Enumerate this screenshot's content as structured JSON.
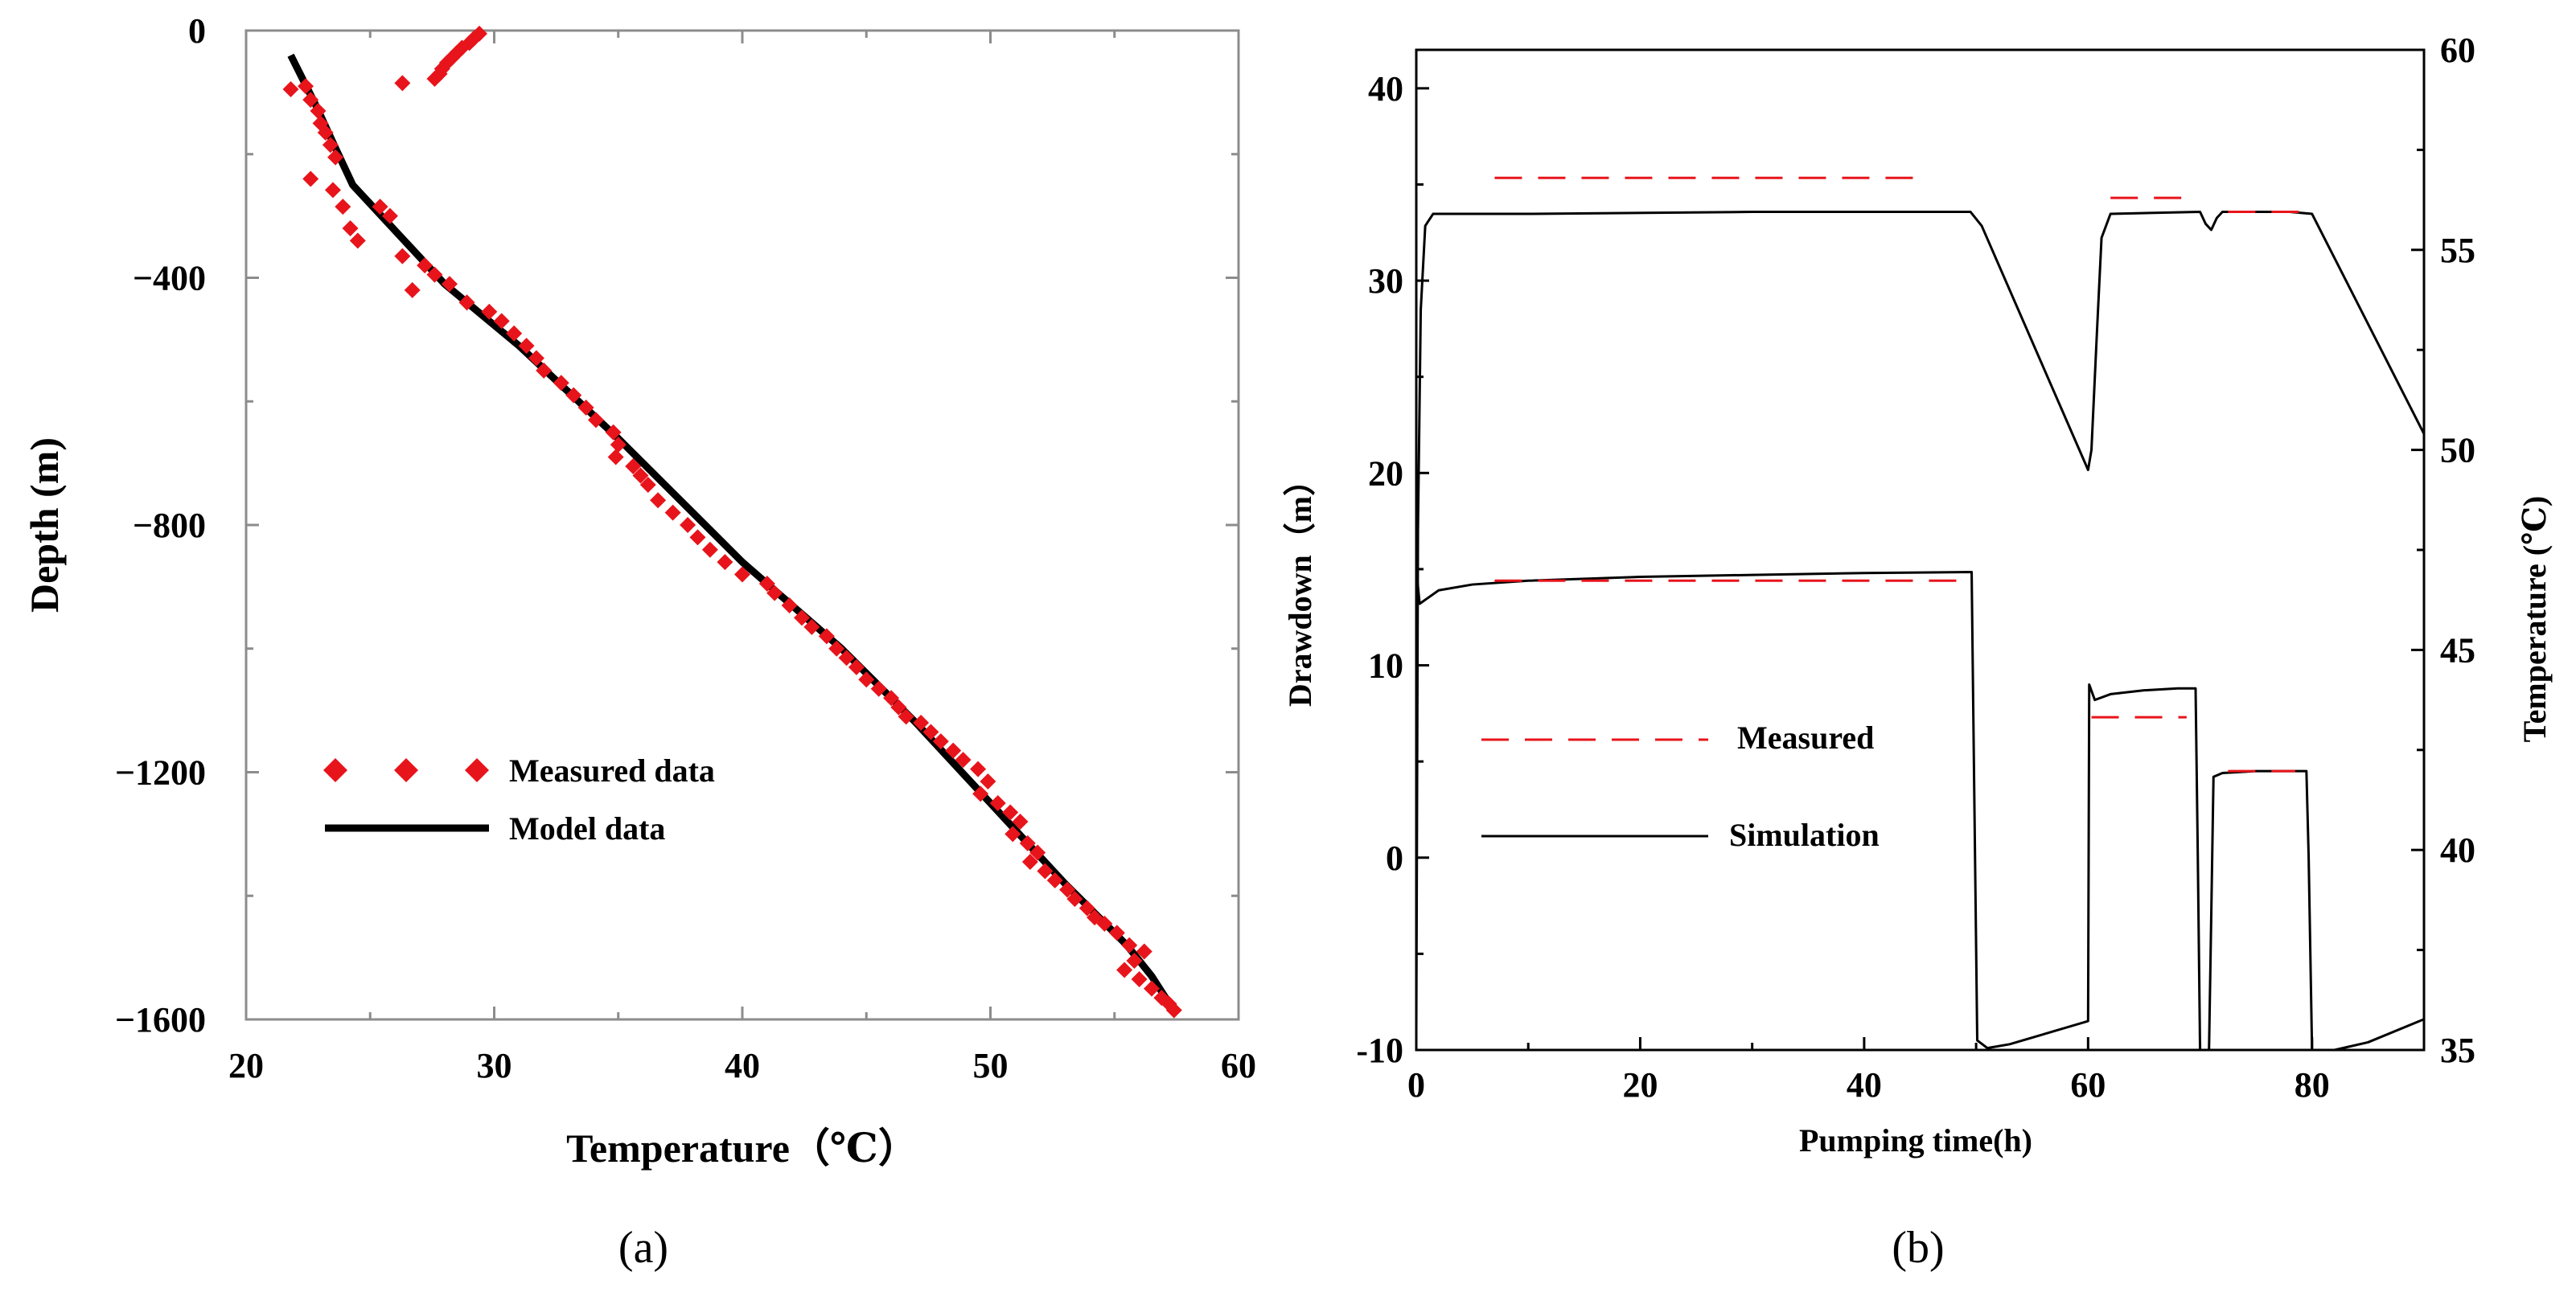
{
  "chart_data": [
    {
      "type": "scatter",
      "panel_label": "(a)",
      "xlabel": "Temperature（℃）",
      "ylabel": "Depth (m)",
      "xlim": [
        20,
        60
      ],
      "ylim": [
        -1600,
        0
      ],
      "xticks": [
        20,
        30,
        40,
        50,
        60
      ],
      "yticks": [
        0,
        -400,
        -800,
        -1200,
        -1600
      ],
      "ytick_labels": [
        "0",
        "−400",
        "−800",
        "−1200",
        "−1600"
      ],
      "grid": false,
      "legend_position": "lower-left",
      "colors": {
        "measured": "#e8141b",
        "model": "#000000"
      },
      "series": [
        {
          "name": "Measured data",
          "kind": "scatter",
          "marker": "diamond",
          "points": [
            [
              29.4,
              -5
            ],
            [
              29.2,
              -12
            ],
            [
              29.0,
              -20
            ],
            [
              28.7,
              -28
            ],
            [
              28.5,
              -36
            ],
            [
              28.3,
              -44
            ],
            [
              28.1,
              -52
            ],
            [
              27.9,
              -62
            ],
            [
              27.8,
              -70
            ],
            [
              27.6,
              -78
            ],
            [
              26.3,
              -85
            ],
            [
              21.8,
              -95
            ],
            [
              22.4,
              -90
            ],
            [
              22.6,
              -112
            ],
            [
              22.9,
              -130
            ],
            [
              23.0,
              -150
            ],
            [
              23.2,
              -165
            ],
            [
              23.4,
              -185
            ],
            [
              23.6,
              -205
            ],
            [
              22.6,
              -240
            ],
            [
              23.5,
              -258
            ],
            [
              23.9,
              -285
            ],
            [
              25.4,
              -285
            ],
            [
              25.8,
              -300
            ],
            [
              24.2,
              -320
            ],
            [
              24.5,
              -340
            ],
            [
              26.3,
              -365
            ],
            [
              27.2,
              -380
            ],
            [
              27.6,
              -395
            ],
            [
              26.7,
              -420
            ],
            [
              28.2,
              -410
            ],
            [
              28.9,
              -440
            ],
            [
              29.8,
              -455
            ],
            [
              30.3,
              -470
            ],
            [
              30.8,
              -490
            ],
            [
              31.3,
              -510
            ],
            [
              31.7,
              -530
            ],
            [
              32.0,
              -550
            ],
            [
              32.7,
              -570
            ],
            [
              33.2,
              -590
            ],
            [
              33.7,
              -610
            ],
            [
              34.1,
              -630
            ],
            [
              34.8,
              -650
            ],
            [
              35.0,
              -670
            ],
            [
              34.9,
              -690
            ],
            [
              35.6,
              -705
            ],
            [
              35.9,
              -720
            ],
            [
              36.2,
              -735
            ],
            [
              36.6,
              -760
            ],
            [
              37.2,
              -780
            ],
            [
              37.8,
              -800
            ],
            [
              38.2,
              -820
            ],
            [
              38.7,
              -840
            ],
            [
              39.3,
              -860
            ],
            [
              40.0,
              -880
            ],
            [
              41.0,
              -895
            ],
            [
              41.3,
              -910
            ],
            [
              41.9,
              -930
            ],
            [
              42.4,
              -950
            ],
            [
              42.8,
              -965
            ],
            [
              43.4,
              -980
            ],
            [
              43.8,
              -1000
            ],
            [
              44.2,
              -1015
            ],
            [
              44.6,
              -1030
            ],
            [
              45.0,
              -1050
            ],
            [
              45.5,
              -1065
            ],
            [
              46.0,
              -1080
            ],
            [
              46.3,
              -1095
            ],
            [
              46.6,
              -1110
            ],
            [
              47.2,
              -1120
            ],
            [
              47.6,
              -1135
            ],
            [
              48.0,
              -1150
            ],
            [
              48.5,
              -1165
            ],
            [
              48.9,
              -1180
            ],
            [
              49.5,
              -1195
            ],
            [
              49.9,
              -1215
            ],
            [
              49.6,
              -1235
            ],
            [
              50.3,
              -1250
            ],
            [
              50.8,
              -1265
            ],
            [
              51.2,
              -1280
            ],
            [
              50.9,
              -1300
            ],
            [
              51.5,
              -1315
            ],
            [
              51.9,
              -1330
            ],
            [
              51.6,
              -1345
            ],
            [
              52.2,
              -1360
            ],
            [
              52.6,
              -1375
            ],
            [
              53.1,
              -1390
            ],
            [
              53.4,
              -1405
            ],
            [
              53.9,
              -1420
            ],
            [
              54.2,
              -1435
            ],
            [
              54.6,
              -1445
            ],
            [
              55.1,
              -1460
            ],
            [
              55.6,
              -1480
            ],
            [
              56.2,
              -1490
            ],
            [
              55.8,
              -1505
            ],
            [
              55.4,
              -1520
            ],
            [
              56.0,
              -1535
            ],
            [
              56.5,
              -1550
            ],
            [
              56.9,
              -1565
            ],
            [
              57.2,
              -1575
            ],
            [
              57.4,
              -1585
            ]
          ]
        },
        {
          "name": "Model data",
          "kind": "line",
          "points": [
            [
              21.8,
              -40
            ],
            [
              22.8,
              -120
            ],
            [
              23.6,
              -190
            ],
            [
              24.3,
              -250
            ],
            [
              28.0,
              -410
            ],
            [
              31.0,
              -510
            ],
            [
              35.0,
              -660
            ],
            [
              40.0,
              -860
            ],
            [
              44.0,
              -1000
            ],
            [
              47.0,
              -1120
            ],
            [
              50.0,
              -1250
            ],
            [
              53.0,
              -1380
            ],
            [
              55.5,
              -1480
            ],
            [
              56.5,
              -1530
            ],
            [
              57.3,
              -1580
            ]
          ]
        }
      ]
    },
    {
      "type": "line",
      "panel_label": "(b)",
      "xlabel": "Pumping time(h)",
      "ylabel": "Drawdown（m）",
      "y2label": "Temperature (℃)",
      "xlim": [
        0,
        90
      ],
      "ylim": [
        -10,
        42
      ],
      "y2lim": [
        35,
        60
      ],
      "xticks": [
        0,
        20,
        40,
        60,
        80
      ],
      "yticks": [
        -10,
        0,
        10,
        20,
        30,
        40
      ],
      "y2ticks": [
        35,
        40,
        45,
        50,
        55,
        60
      ],
      "grid": false,
      "legend_position": "lower-left",
      "colors": {
        "measured": "#e8141b",
        "simulation": "#000000"
      },
      "series": [
        {
          "name": "Simulation",
          "role": "temperature",
          "axis": "y2",
          "kind": "line",
          "points": [
            [
              0.0,
              35.5
            ],
            [
              0.15,
              48
            ],
            [
              0.4,
              53.5
            ],
            [
              0.8,
              55.6
            ],
            [
              1.5,
              55.9
            ],
            [
              10,
              55.9
            ],
            [
              30,
              55.95
            ],
            [
              49.5,
              55.95
            ],
            [
              50.5,
              55.6
            ],
            [
              60.0,
              49.5
            ],
            [
              60.3,
              50.0
            ],
            [
              60.8,
              53.0
            ],
            [
              61.2,
              55.3
            ],
            [
              62.0,
              55.9
            ],
            [
              70.0,
              55.95
            ],
            [
              70.5,
              55.65
            ],
            [
              71.0,
              55.5
            ],
            [
              71.5,
              55.8
            ],
            [
              72.0,
              55.95
            ],
            [
              78.0,
              55.95
            ],
            [
              80.0,
              55.9
            ],
            [
              90.0,
              50.4
            ]
          ]
        },
        {
          "name": "Simulation",
          "role": "drawdown",
          "axis": "y",
          "kind": "line",
          "points": [
            [
              0.0,
              15.0
            ],
            [
              0.3,
              13.2
            ],
            [
              2,
              13.9
            ],
            [
              5,
              14.2
            ],
            [
              10,
              14.4
            ],
            [
              20,
              14.6
            ],
            [
              30,
              14.7
            ],
            [
              40,
              14.8
            ],
            [
              49.6,
              14.85
            ],
            [
              49.8,
              5
            ],
            [
              50.1,
              -9.5
            ],
            [
              51.0,
              -9.9
            ],
            [
              53.0,
              -9.7
            ],
            [
              60.0,
              -8.5
            ],
            [
              60.1,
              9.0
            ],
            [
              60.6,
              8.2
            ],
            [
              62.0,
              8.5
            ],
            [
              65.0,
              8.7
            ],
            [
              68.0,
              8.8
            ],
            [
              69.6,
              8.8
            ],
            [
              69.8,
              0
            ],
            [
              70.0,
              -10.0
            ],
            [
              70.8,
              -10.0
            ],
            [
              71.0,
              -3
            ],
            [
              71.2,
              4.2
            ],
            [
              72.0,
              4.4
            ],
            [
              75.0,
              4.5
            ],
            [
              79.5,
              4.5
            ],
            [
              79.7,
              0
            ],
            [
              80.0,
              -10.0
            ],
            [
              82.0,
              -10.0
            ],
            [
              85.0,
              -9.6
            ],
            [
              90.0,
              -8.4
            ]
          ]
        },
        {
          "name": "Measured",
          "role": "temperature",
          "axis": "y2",
          "kind": "dashed-segments",
          "segments": [
            [
              [
                7,
                56.8
              ],
              [
                45.5,
                56.8
              ]
            ],
            [
              [
                62,
                56.3
              ],
              [
                68.5,
                56.3
              ]
            ],
            [
              [
                72.5,
                55.95
              ],
              [
                79,
                55.95
              ]
            ]
          ]
        },
        {
          "name": "Measured",
          "role": "drawdown",
          "axis": "y",
          "kind": "dashed-segments",
          "segments": [
            [
              [
                7,
                14.4
              ],
              [
                48.5,
                14.4
              ]
            ],
            [
              [
                60.3,
                7.3
              ],
              [
                68.8,
                7.3
              ]
            ],
            [
              [
                72.5,
                4.5
              ],
              [
                78.5,
                4.5
              ]
            ]
          ]
        }
      ]
    }
  ]
}
